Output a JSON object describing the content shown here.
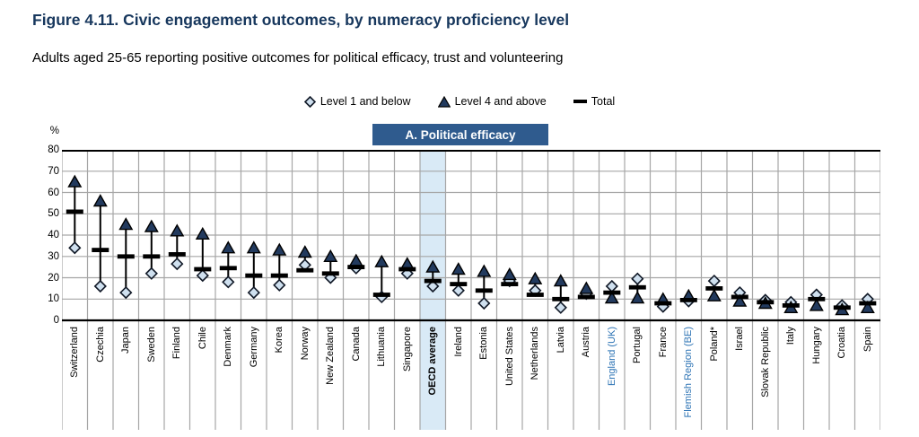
{
  "figure": {
    "title": "Figure 4.11. Civic engagement outcomes, by numeracy proficiency level",
    "subtitle": "Adults aged 25-65 reporting positive outcomes for political efficacy, trust and volunteering"
  },
  "legend": {
    "level1_label": "Level 1 and below",
    "level4_label": "Level 4 and above",
    "total_label": "Total"
  },
  "panel": {
    "label": "A. Political efficacy"
  },
  "y_axis": {
    "unit": "%",
    "ticks": [
      80,
      70,
      60,
      50,
      40,
      30,
      20,
      10,
      0
    ]
  },
  "colors": {
    "title_navy": "#17375d",
    "band_blue": "#2f5b8e",
    "diamond_fill": "#cfe0ef",
    "triangle_fill": "#223a5e",
    "highlight_fill": "#d9eaf6",
    "grid": "#a6a6a6",
    "blue_label": "#2e74b5"
  },
  "chart_data": {
    "type": "scatter",
    "title": "A. Political efficacy",
    "ylabel": "%",
    "ylim": [
      0,
      80
    ],
    "grid": true,
    "legend_position": "top",
    "highlight_category": "OECD average",
    "blue_labels": [
      "England (UK)",
      "Flemish Region (BE)"
    ],
    "categories": [
      "Switzerland",
      "Czechia",
      "Japan",
      "Sweden",
      "Finland",
      "Chile",
      "Denmark",
      "Germany",
      "Korea",
      "Norway",
      "New Zealand",
      "Canada",
      "Lithuania",
      "Singapore",
      "OECD average",
      "Ireland",
      "Estonia",
      "United States",
      "Netherlands",
      "Latvia",
      "Austria",
      "England (UK)",
      "Portugal",
      "France",
      "Flemish Region (BE)",
      "Poland*",
      "Israel",
      "Slovak Republic",
      "Italy",
      "Hungary",
      "Croatia",
      "Spain"
    ],
    "series": [
      {
        "name": "Level 1 and below",
        "marker": "diamond",
        "values": [
          34,
          16,
          13,
          22,
          26.5,
          21,
          18,
          13,
          16.5,
          26,
          20,
          24.5,
          11,
          22,
          16,
          14,
          8,
          18.5,
          14,
          6,
          12.5,
          16,
          19.5,
          6.5,
          9,
          18.5,
          13,
          9.5,
          8.5,
          12,
          7,
          10
        ]
      },
      {
        "name": "Level 4 and above",
        "marker": "triangle",
        "values": [
          65,
          56,
          45,
          44,
          42,
          40.5,
          34,
          34,
          33,
          32,
          30,
          28,
          27.5,
          26.5,
          25,
          24,
          23,
          21.5,
          19.5,
          18.5,
          15,
          10.5,
          10.5,
          10,
          11.5,
          11.5,
          9,
          8,
          6,
          7,
          5,
          6
        ]
      },
      {
        "name": "Total",
        "marker": "dash",
        "values": [
          51,
          33,
          30,
          30,
          31,
          24,
          24.5,
          21,
          21,
          23.5,
          22,
          25,
          12,
          24,
          18.5,
          17,
          14,
          17,
          12,
          10,
          11,
          13,
          15.5,
          8,
          9.5,
          15,
          11,
          8.5,
          7,
          10,
          6,
          8
        ]
      }
    ]
  }
}
